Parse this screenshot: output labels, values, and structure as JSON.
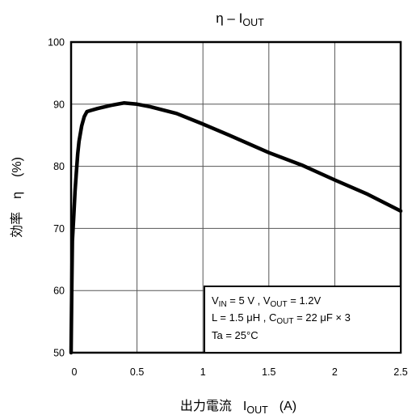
{
  "chart_data": {
    "type": "line",
    "title": {
      "main": "η – I",
      "sub": "OUT"
    },
    "xlabel": {
      "prefix": "出力電流",
      "symbol": "I",
      "sub": "OUT",
      "unit": "(A)"
    },
    "ylabel": {
      "prefix": "効率",
      "symbol": "η",
      "unit": "(%)"
    },
    "xlim": [
      0,
      2.5
    ],
    "ylim": [
      50,
      100
    ],
    "xticks": [
      "0",
      "0.5",
      "1",
      "1.5",
      "2",
      "2.5"
    ],
    "yticks": [
      "50",
      "60",
      "70",
      "80",
      "90",
      "100"
    ],
    "grid": true,
    "series": [
      {
        "color": "#000000",
        "x": [
          0.0,
          0.005,
          0.01,
          0.02,
          0.03,
          0.04,
          0.05,
          0.06,
          0.08,
          0.1,
          0.12,
          0.15,
          0.2,
          0.3,
          0.4,
          0.5,
          0.6,
          0.8,
          1.0,
          1.2,
          1.5,
          1.75,
          2.0,
          2.25,
          2.5
        ],
        "y": [
          50.0,
          60.0,
          68.0,
          72.0,
          76.0,
          79.0,
          82.0,
          84.0,
          86.5,
          88.0,
          88.8,
          89.0,
          89.3,
          89.8,
          90.2,
          90.0,
          89.6,
          88.5,
          86.8,
          85.0,
          82.2,
          80.2,
          77.8,
          75.5,
          72.8
        ]
      }
    ],
    "annotation": {
      "line1": {
        "v": "V",
        "vin_sub": "IN",
        "vin_val": " = 5 V , V",
        "vout_sub": "OUT",
        "vout_val": " = 1.2V"
      },
      "line2": {
        "l": "L = 1.5 μH , C",
        "cout_sub": "OUT",
        "cout_val": " = 22 μF × 3"
      },
      "line3": "Ta = 25°C",
      "placement": "bottom-right"
    }
  }
}
